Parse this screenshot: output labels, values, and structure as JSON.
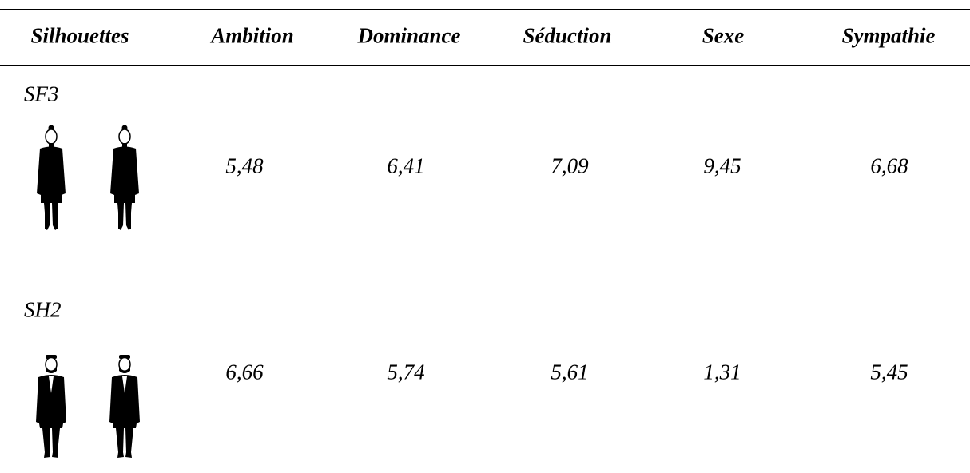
{
  "table": {
    "header": [
      "Silhouettes",
      "Ambition",
      "Dominance",
      "Séduction",
      "Sexe",
      "Sympathie"
    ],
    "rows": [
      {
        "label": "SF3",
        "values": [
          "5,48",
          "6,41",
          "7,09",
          "9,45",
          "6,68"
        ]
      },
      {
        "label": "SH2",
        "values": [
          "6,66",
          "5,74",
          "5,61",
          "1,31",
          "5,45"
        ]
      }
    ]
  }
}
